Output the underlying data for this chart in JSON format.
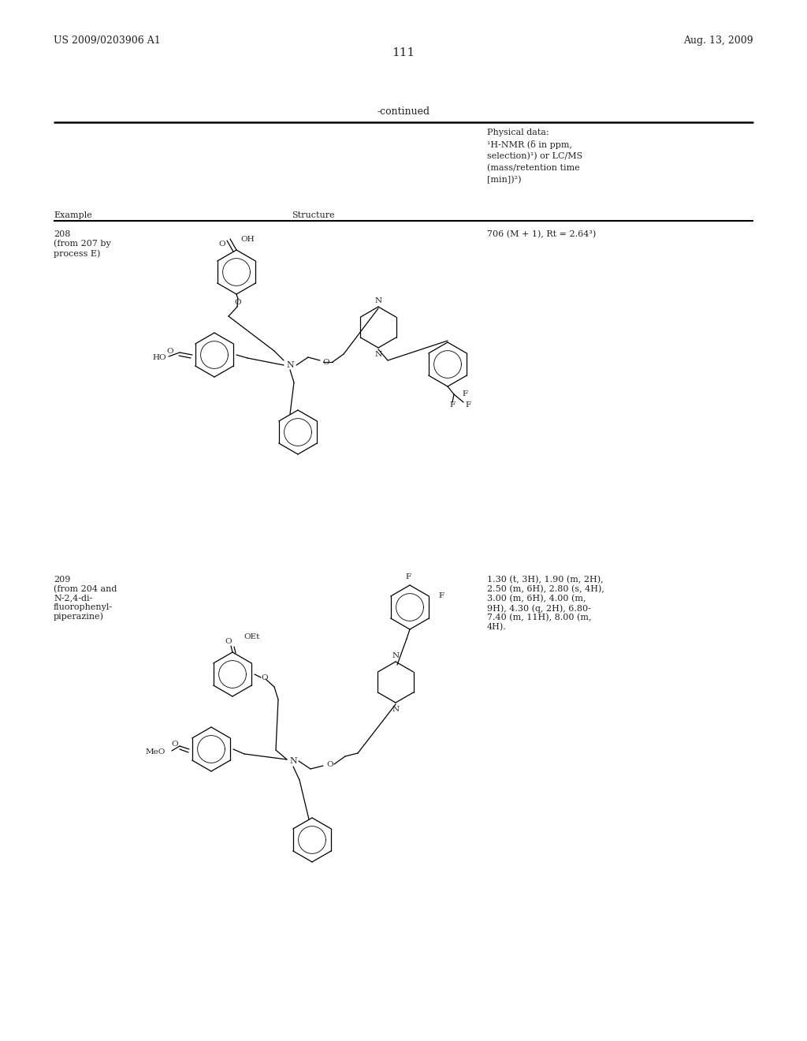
{
  "page_width": 10.24,
  "page_height": 13.2,
  "background_color": "#ffffff",
  "header_left": "US 2009/0203906 A1",
  "header_right": "Aug. 13, 2009",
  "page_number": "111",
  "continued_text": "-continued",
  "col1_label": "Example",
  "col2_label": "Structure",
  "col3_line1": "Physical data:",
  "col3_line2": "¹H-NMR (δ in ppm,",
  "col3_line3": "selection)¹) or LC/MS",
  "col3_line4": "(mass/retention time",
  "col3_line5": "[min])²)",
  "ex208_label": "208\n(from 207 by\nprocess E)",
  "ex208_data": "706 (M + 1), Rt = 2.64³)",
  "ex209_label": "209\n(from 204 and\nN-2,4-di-\nfluorophenyl-\npiperazine)",
  "ex209_data": "1.30 (t, 3H), 1.90 (m, 2H),\n2.50 (m, 6H), 2.80 (s, 4H),\n3.00 (m, 6H), 4.00 (m,\n9H), 4.30 (q, 2H), 6.80-\n7.40 (m, 11H), 8.00 (m,\n4H).",
  "text_color": "#222222",
  "line_color": "#000000"
}
